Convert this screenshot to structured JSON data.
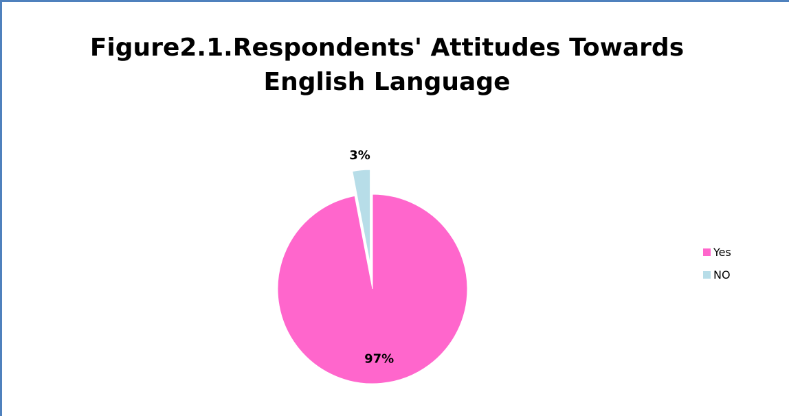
{
  "chart_data": {
    "type": "pie",
    "title_lines": [
      "Figure2.1.Respondents' Attitudes Towards",
      "English Language"
    ],
    "slices": [
      {
        "label": "Yes",
        "value": 97,
        "data_label": "97%",
        "color": "#ff66cc",
        "exploded": false
      },
      {
        "label": "NO",
        "value": 3,
        "data_label": "3%",
        "color": "#b7dde8",
        "exploded": true
      }
    ],
    "legend_position": "right",
    "frame_color": "#4f81bd"
  }
}
